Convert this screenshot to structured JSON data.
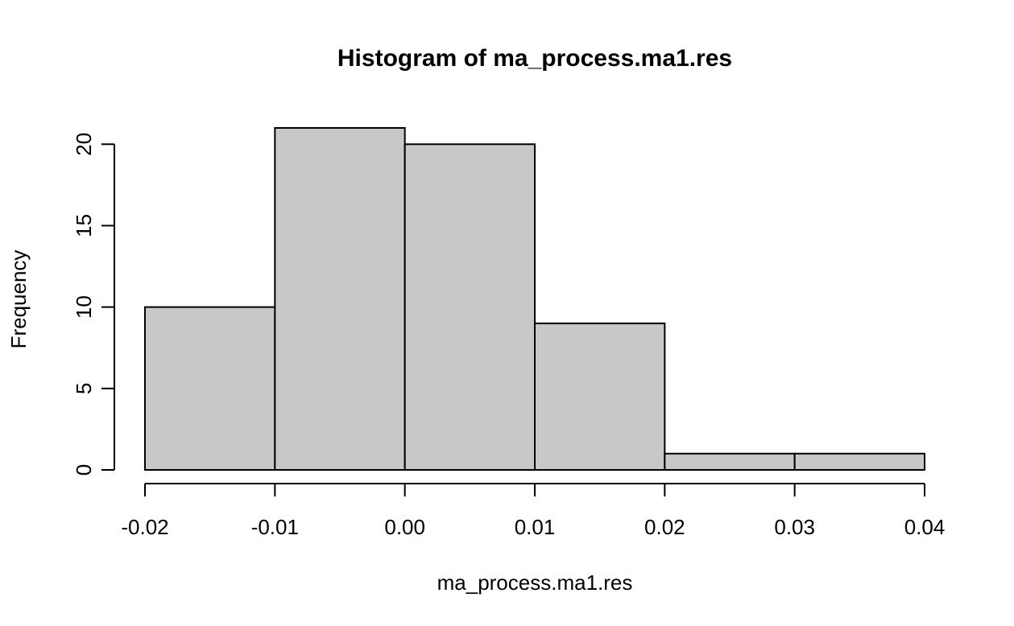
{
  "chart_data": {
    "type": "bar",
    "title": "Histogram of ma_process.ma1.res",
    "xlabel": "ma_process.ma1.res",
    "ylabel": "Frequency",
    "bins": [
      {
        "start": -0.02,
        "end": -0.01,
        "count": 10
      },
      {
        "start": -0.01,
        "end": 0.0,
        "count": 21
      },
      {
        "start": 0.0,
        "end": 0.01,
        "count": 20
      },
      {
        "start": 0.01,
        "end": 0.02,
        "count": 9
      },
      {
        "start": 0.02,
        "end": 0.03,
        "count": 1
      },
      {
        "start": 0.03,
        "end": 0.04,
        "count": 1
      }
    ],
    "x_ticks": [
      "-0.02",
      "-0.01",
      "0.00",
      "0.01",
      "0.02",
      "0.03",
      "0.04"
    ],
    "x_tick_values": [
      -0.02,
      -0.01,
      0.0,
      0.01,
      0.02,
      0.03,
      0.04
    ],
    "y_ticks": [
      "0",
      "5",
      "10",
      "15",
      "20"
    ],
    "y_tick_values": [
      0,
      5,
      10,
      15,
      20
    ],
    "xlim": [
      -0.02,
      0.04
    ],
    "ylim": [
      0,
      21
    ],
    "grid": false,
    "colors": {
      "bar_fill": "#c8c8c8",
      "bar_stroke": "#000000",
      "axis": "#000000"
    }
  }
}
